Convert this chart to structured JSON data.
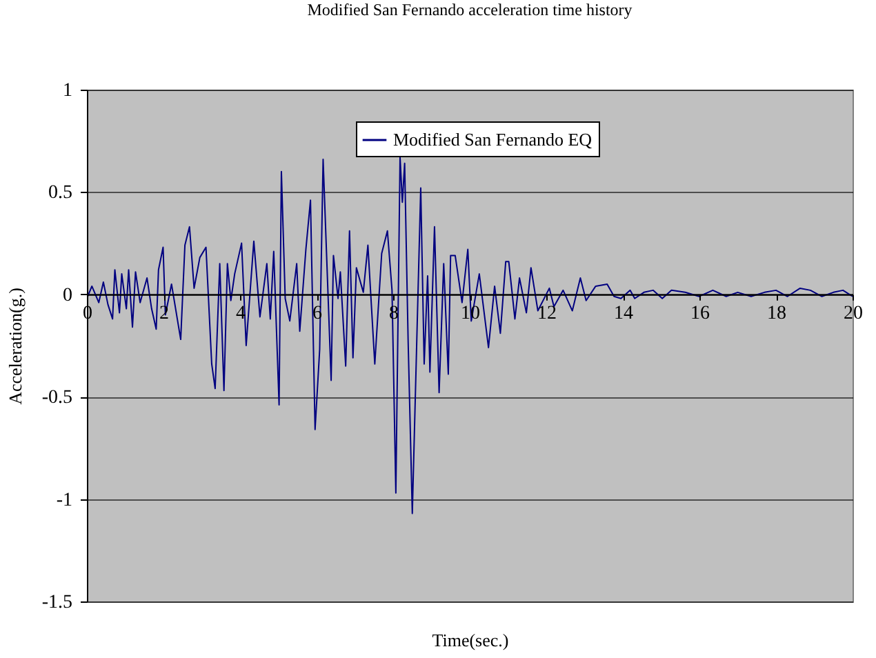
{
  "chart_data": {
    "type": "line",
    "title": "Modified San Fernando acceleration time history",
    "xlabel": "Time(sec.)",
    "ylabel": "Acceleration(g.)",
    "x": [
      0,
      0.13,
      0.31,
      0.43,
      0.55,
      0.67,
      0.73,
      0.85,
      0.91,
      1.03,
      1.09,
      1.19,
      1.27,
      1.39,
      1.57,
      1.69,
      1.81,
      1.87,
      1.99,
      2.05,
      2.21,
      2.45,
      2.56,
      2.68,
      2.8,
      2.95,
      3.11,
      3.26,
      3.35,
      3.47,
      3.58,
      3.67,
      3.76,
      3.86,
      4.04,
      4.16,
      4.36,
      4.52,
      4.7,
      4.79,
      4.88,
      5.02,
      5.08,
      5.18,
      5.3,
      5.48,
      5.56,
      5.72,
      5.84,
      5.96,
      6.08,
      6.17,
      6.38,
      6.44,
      6.56,
      6.62,
      6.76,
      6.86,
      6.95,
      7.04,
      7.22,
      7.34,
      7.52,
      7.7,
      7.85,
      7.97,
      8.07,
      8.18,
      8.24,
      8.3,
      8.39,
      8.5,
      8.72,
      8.81,
      8.9,
      8.96,
      9.08,
      9.2,
      9.32,
      9.44,
      9.5,
      9.62,
      9.8,
      9.95,
      10.04,
      10.25,
      10.49,
      10.65,
      10.8,
      10.94,
      11.02,
      11.18,
      11.3,
      11.48,
      11.6,
      11.78,
      12.08,
      12.2,
      12.44,
      12.68,
      12.89,
      13.04,
      13.29,
      13.59,
      13.77,
      13.95,
      14.19,
      14.31,
      14.55,
      14.79,
      15.03,
      15.27,
      15.63,
      15.99,
      16.35,
      16.7,
      17,
      17.35,
      17.7,
      18,
      18.3,
      18.63,
      18.9,
      19.2,
      19.5,
      19.75,
      20
    ],
    "series": [
      {
        "name": "Modified San Fernando EQ",
        "color": "#000080",
        "values": [
          -0.02,
          0.04,
          -0.04,
          0.06,
          -0.05,
          -0.12,
          0.12,
          -0.09,
          0.1,
          -0.07,
          0.12,
          -0.16,
          0.11,
          -0.04,
          0.08,
          -0.07,
          -0.17,
          0.12,
          0.23,
          -0.1,
          0.05,
          -0.22,
          0.24,
          0.33,
          0.03,
          0.18,
          0.23,
          -0.34,
          -0.46,
          0.15,
          -0.47,
          0.15,
          -0.03,
          0.1,
          0.25,
          -0.25,
          0.26,
          -0.11,
          0.15,
          -0.12,
          0.21,
          -0.54,
          0.6,
          -0.02,
          -0.13,
          0.15,
          -0.18,
          0.22,
          0.46,
          -0.66,
          -0.27,
          0.66,
          -0.42,
          0.19,
          -0.02,
          0.11,
          -0.35,
          0.31,
          -0.31,
          0.13,
          0.01,
          0.24,
          -0.34,
          0.2,
          0.31,
          0.02,
          -0.97,
          0.67,
          0.45,
          0.64,
          -0.22,
          -1.07,
          0.52,
          -0.34,
          0.09,
          -0.38,
          0.33,
          -0.48,
          0.15,
          -0.39,
          0.19,
          0.19,
          -0.04,
          0.22,
          -0.13,
          0.1,
          -0.26,
          0.04,
          -0.19,
          0.16,
          0.16,
          -0.12,
          0.08,
          -0.09,
          0.13,
          -0.08,
          0.03,
          -0.06,
          0.02,
          -0.08,
          0.08,
          -0.03,
          0.04,
          0.05,
          -0.01,
          -0.02,
          0.02,
          -0.02,
          0.01,
          0.02,
          -0.02,
          0.02,
          0.01,
          -0.01,
          0.02,
          -0.01,
          0.01,
          -0.01,
          0.01,
          0.02,
          -0.01,
          0.03,
          0.02,
          -0.01,
          0.01,
          0.02,
          -0.01
        ]
      }
    ],
    "xlim": [
      0,
      20
    ],
    "xticks": [
      0,
      2,
      4,
      6,
      8,
      10,
      12,
      14,
      16,
      18,
      20
    ],
    "ylim": [
      -1.5,
      1
    ],
    "yticks": [
      -1.5,
      -1,
      -0.5,
      0,
      0.5,
      1
    ],
    "grid": "y",
    "legend": "top"
  }
}
